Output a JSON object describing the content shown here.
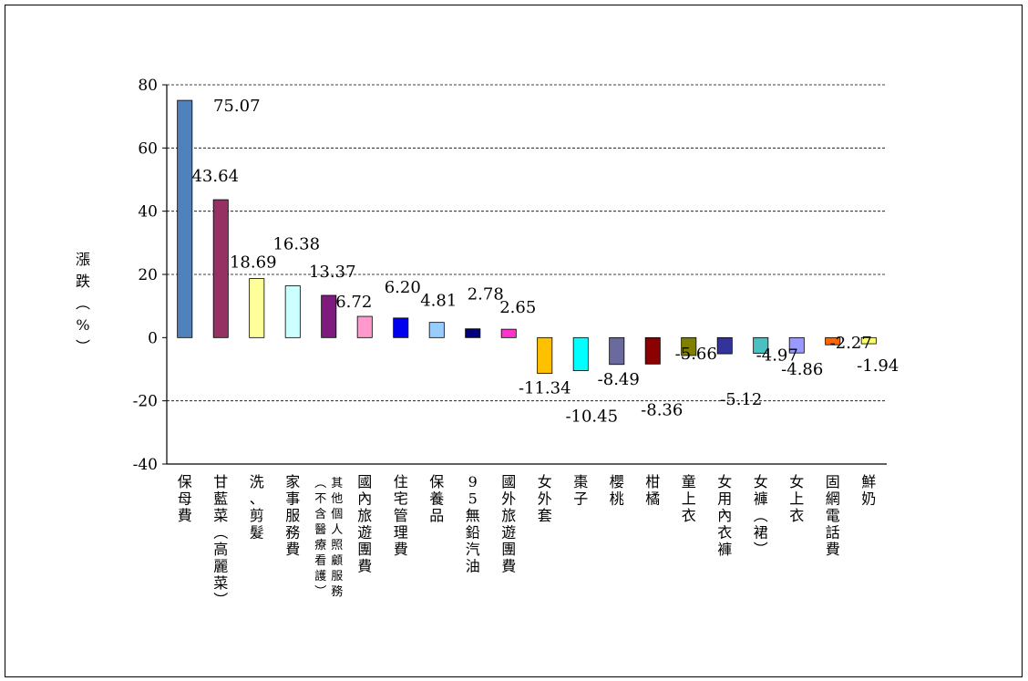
{
  "chart_data": {
    "type": "bar",
    "ylabel": "漲跌(%)",
    "ylim": [
      -40,
      80
    ],
    "yticks": [
      80,
      60,
      40,
      20,
      0,
      -20,
      -40
    ],
    "grid": true,
    "categories": [
      "保母費",
      "甘藍菜(高麗菜)",
      "洗、剪髮",
      "家事服務費",
      "其他個人照顧服務(不含醫療看護)",
      "國內旅遊團費",
      "住宅管理費",
      "保養品",
      "95無鉛汽油",
      "國外旅遊團費",
      "女外套",
      "棗子",
      "櫻桃",
      "柑橘",
      "童上衣",
      "女用內衣褲",
      "女褲(裙)",
      "女上衣",
      "固網電話費",
      "鮮奶"
    ],
    "values": [
      75.07,
      43.64,
      18.69,
      16.38,
      13.37,
      6.72,
      6.2,
      4.81,
      2.78,
      2.65,
      -11.34,
      -10.45,
      -8.49,
      -8.36,
      -5.66,
      -5.12,
      -4.97,
      -4.86,
      -2.27,
      -1.94
    ],
    "value_labels": [
      "75.07",
      "43.64",
      "18.69",
      "16.38",
      "13.37",
      "6.72",
      "6.20",
      "4.81",
      "2.78",
      "2.65",
      "-11.34",
      "-10.45",
      "-8.49",
      "-8.36",
      "-5.66",
      "-5.12",
      "-4.97",
      "-4.86",
      "-2.27",
      "-1.94"
    ],
    "colors": [
      "#4f81bd",
      "#953163",
      "#ffff99",
      "#ccffff",
      "#7f1a7f",
      "#ff99cc",
      "#0000ee",
      "#99ccff",
      "#000080",
      "#ff33cc",
      "#ffc000",
      "#00ffff",
      "#6a6a9e",
      "#8b0000",
      "#808000",
      "#333399",
      "#4bc0c0",
      "#9999ff",
      "#ff6600",
      "#ffff66"
    ]
  }
}
